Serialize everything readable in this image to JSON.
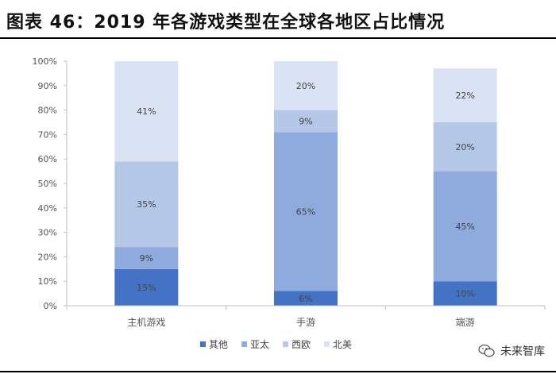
{
  "header": {
    "title": "图表 46：2019 年各游戏类型在全球各地区占比情况"
  },
  "watermark": {
    "text": "未来智库"
  },
  "chart_data": {
    "type": "bar",
    "stacked": true,
    "categories": [
      "主机游戏",
      "手游",
      "端游"
    ],
    "series": [
      {
        "name": "其他",
        "color": "#4472C4",
        "values": [
          15,
          6,
          10
        ],
        "labels": [
          "15%",
          "6%",
          "10%"
        ]
      },
      {
        "name": "亚太",
        "color": "#8FAADC",
        "values": [
          9,
          65,
          45
        ],
        "labels": [
          "9%",
          "65%",
          "45%"
        ]
      },
      {
        "name": "西欧",
        "color": "#B4C7E7",
        "values": [
          35,
          9,
          20
        ],
        "labels": [
          "35%",
          "9%",
          "20%"
        ]
      },
      {
        "name": "北美",
        "color": "#DAE3F3",
        "values": [
          41,
          20,
          22
        ],
        "labels": [
          "41%",
          "20%",
          "22%"
        ]
      }
    ],
    "yticks": [
      "0%",
      "10%",
      "20%",
      "30%",
      "40%",
      "50%",
      "60%",
      "70%",
      "80%",
      "90%",
      "100%"
    ],
    "ylim": [
      0,
      100
    ],
    "legend_position": "bottom"
  }
}
